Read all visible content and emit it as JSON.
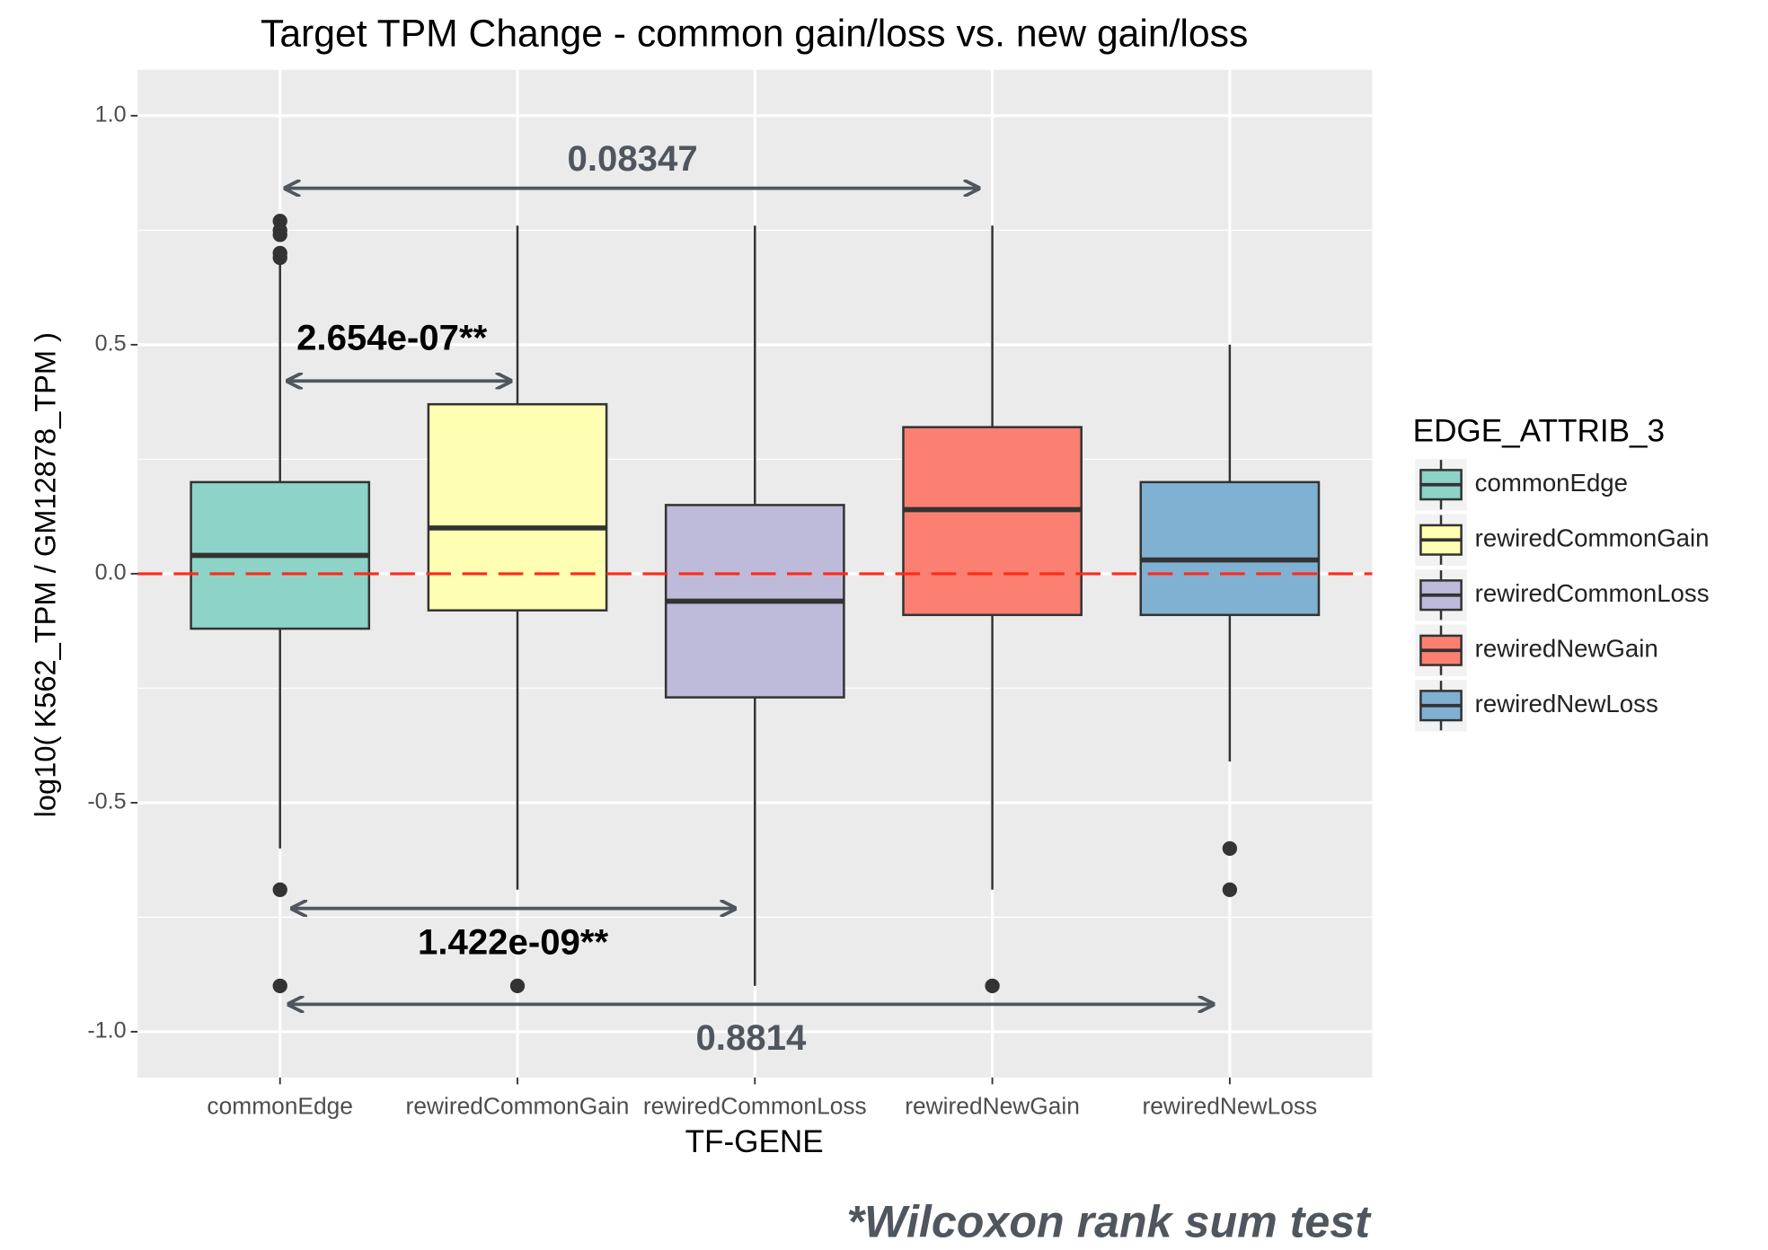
{
  "chart_data": {
    "type": "box",
    "title": "Target TPM Change - common gain/loss vs. new gain/loss",
    "x_label": "TF-GENE",
    "y_label": "log10( K562_TPM / GM12878_TPM )",
    "legend_title": "EDGE_ATTRIB_3",
    "categories": [
      "commonEdge",
      "rewiredCommonGain",
      "rewiredCommonLoss",
      "rewiredNewGain",
      "rewiredNewLoss"
    ],
    "series": [
      {
        "name": "commonEdge",
        "color": "#8dd3c7",
        "low": -0.6,
        "q1": -0.12,
        "median": 0.04,
        "q3": 0.2,
        "high": 0.68,
        "outliers": [
          0.77,
          0.75,
          0.74,
          0.7,
          0.69,
          -0.69,
          -0.9
        ]
      },
      {
        "name": "rewiredCommonGain",
        "color": "#ffffb3",
        "low": -0.69,
        "q1": -0.08,
        "median": 0.1,
        "q3": 0.37,
        "high": 0.76,
        "outliers": [
          -0.9
        ]
      },
      {
        "name": "rewiredCommonLoss",
        "color": "#bebada",
        "low": -0.9,
        "q1": -0.27,
        "median": -0.06,
        "q3": 0.15,
        "high": 0.76,
        "outliers": []
      },
      {
        "name": "rewiredNewGain",
        "color": "#fb8072",
        "low": -0.69,
        "q1": -0.09,
        "median": 0.14,
        "q3": 0.32,
        "high": 0.76,
        "outliers": [
          -0.9
        ]
      },
      {
        "name": "rewiredNewLoss",
        "color": "#80b1d3",
        "low": -0.41,
        "q1": -0.09,
        "median": 0.03,
        "q3": 0.2,
        "high": 0.5,
        "outliers": [
          -0.6,
          -0.69
        ]
      }
    ],
    "ylim": [
      -1.1,
      1.1
    ],
    "yticks": [
      {
        "value": -1,
        "label": "-1.0"
      },
      {
        "value": -0.5,
        "label": "-0.5"
      },
      {
        "value": 0,
        "label": "0.0"
      },
      {
        "value": 0.5,
        "label": "0.5"
      },
      {
        "value": 1,
        "label": "1.0"
      }
    ],
    "grid": true,
    "reference_line": {
      "value": 0,
      "color": "#ff2a1a"
    },
    "annotations": [
      {
        "text": "0.08347",
        "color": "#50565e"
      },
      {
        "text": "2.654e-07**",
        "color": "#000000"
      },
      {
        "text": "1.422e-09**",
        "color": "#000000"
      },
      {
        "text": "0.8814",
        "color": "#50565e"
      }
    ],
    "footnote": "*Wilcoxon rank sum test"
  }
}
